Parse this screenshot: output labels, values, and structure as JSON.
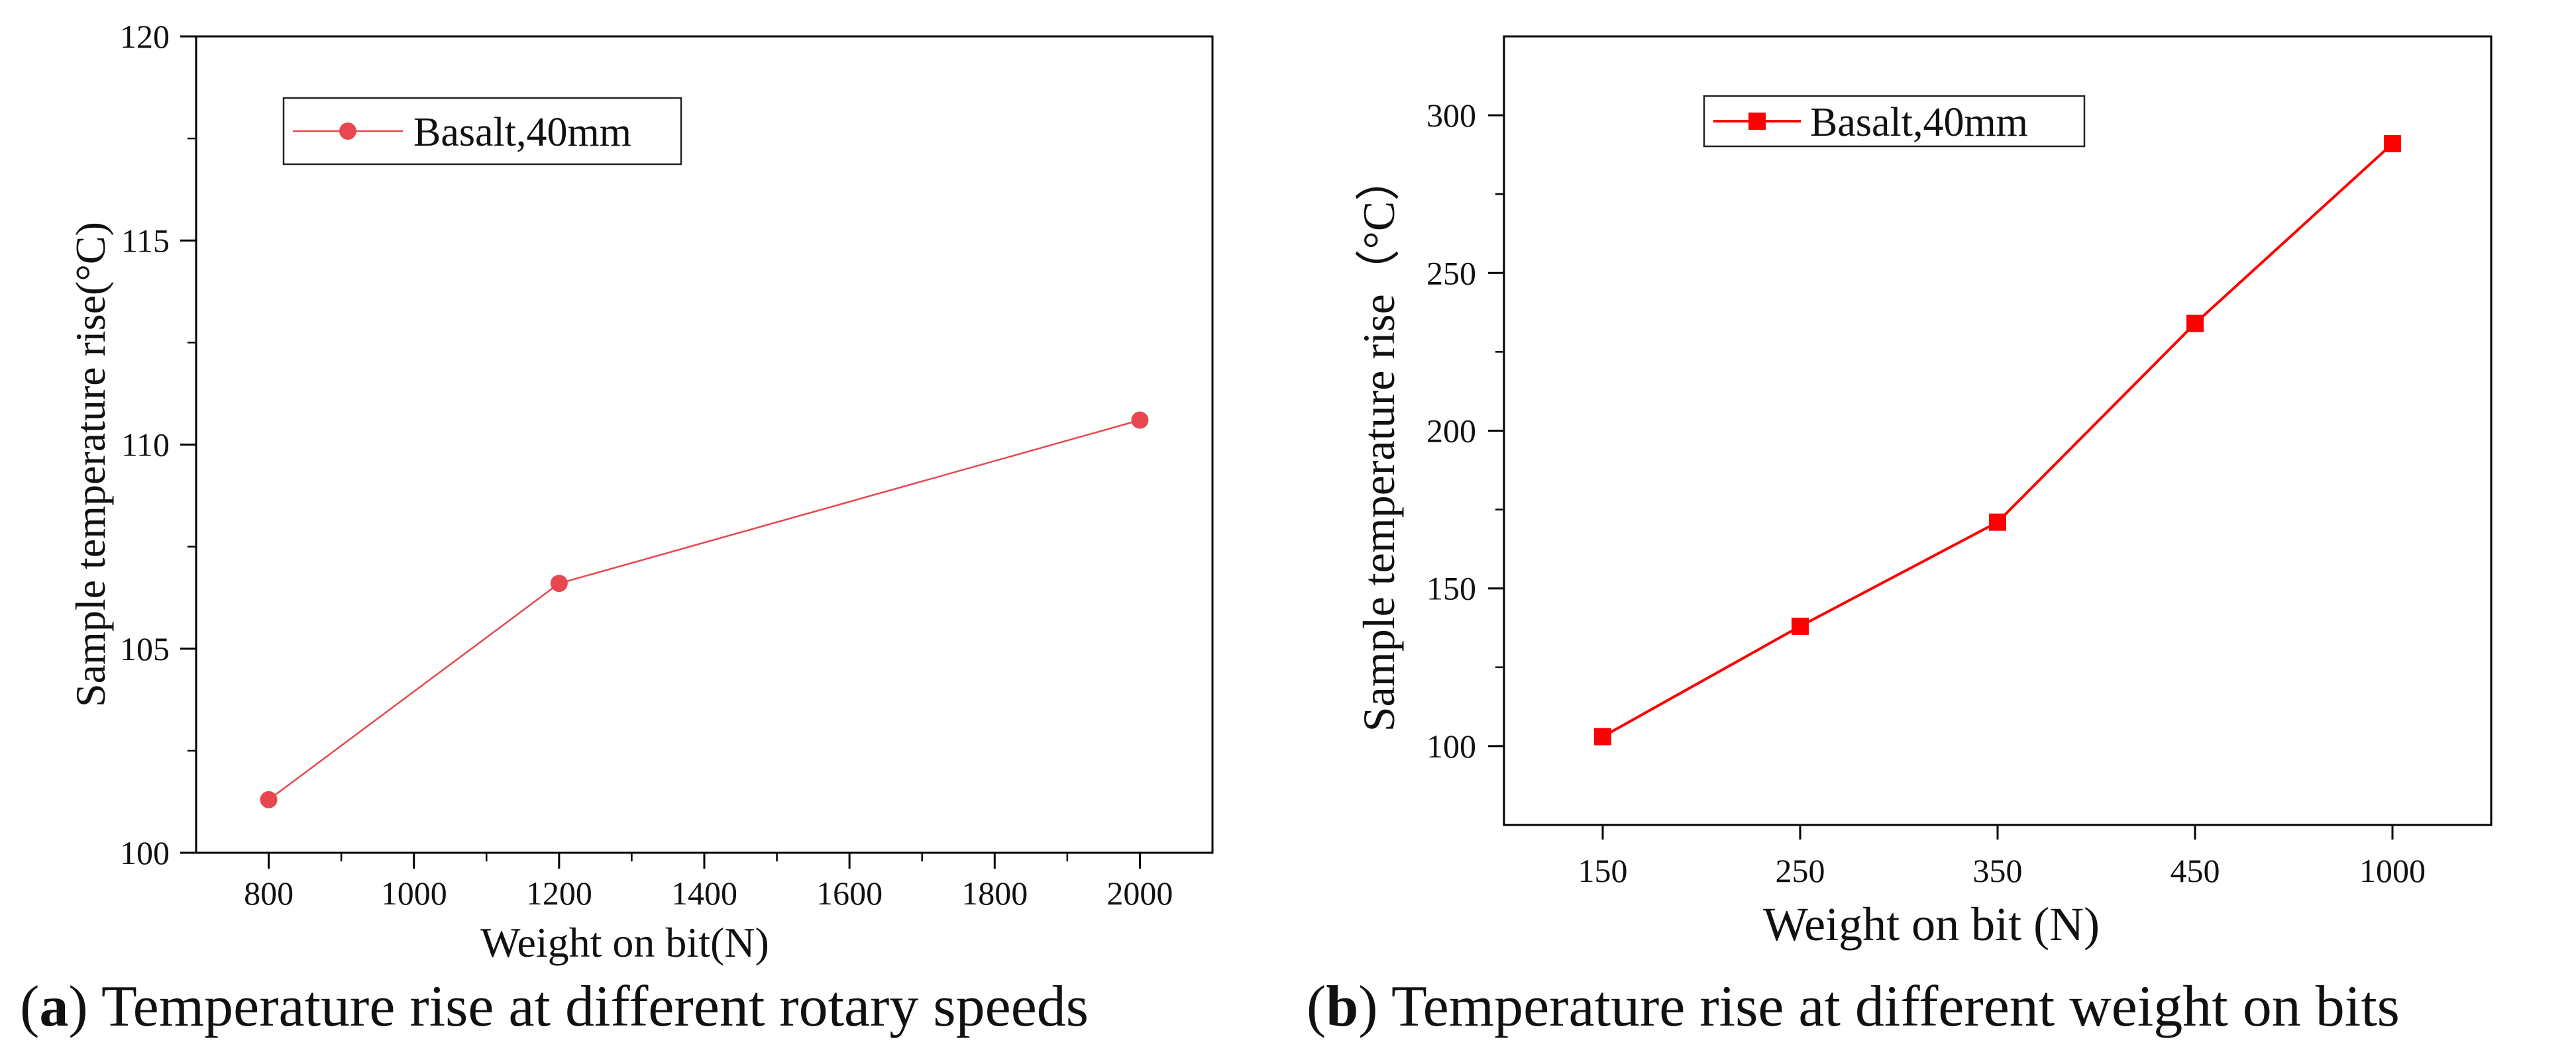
{
  "chart_data": [
    {
      "type": "line",
      "xlabel": "Weight on bit(N)",
      "ylabel": "Sample temperature rise(°C)",
      "x_ticks": [
        "800",
        "1000",
        "1200",
        "1400",
        "1600",
        "1800",
        "2000"
      ],
      "y_ticks": [
        "100",
        "105",
        "110",
        "115",
        "120"
      ],
      "xlim": [
        700,
        2100
      ],
      "ylim": [
        100,
        120
      ],
      "legend_position": "top-left",
      "grid": false,
      "series": [
        {
          "name": "Basalt,40mm",
          "color": "#e8474f",
          "marker": "circle",
          "x": [
            800,
            1200,
            2000
          ],
          "y": [
            101.3,
            106.6,
            110.6
          ]
        }
      ]
    },
    {
      "type": "line",
      "xlabel": "Weight on bit (N)",
      "ylabel": "Sample temperature rise（°C）",
      "categories": [
        "150",
        "250",
        "350",
        "450",
        "1000"
      ],
      "y_ticks": [
        "100",
        "150",
        "200",
        "250",
        "300"
      ],
      "ylim": [
        75,
        325
      ],
      "legend_position": "top-left",
      "grid": false,
      "series": [
        {
          "name": "Basalt,40mm",
          "color": "#ff0000",
          "marker": "square",
          "values": [
            103,
            138,
            171,
            234,
            291
          ]
        }
      ]
    }
  ],
  "captions": {
    "a": {
      "letter": "a",
      "text": " Temperature rise at different rotary speeds"
    },
    "b": {
      "letter": "b",
      "text": " Temperature rise at different weight on bits"
    }
  }
}
